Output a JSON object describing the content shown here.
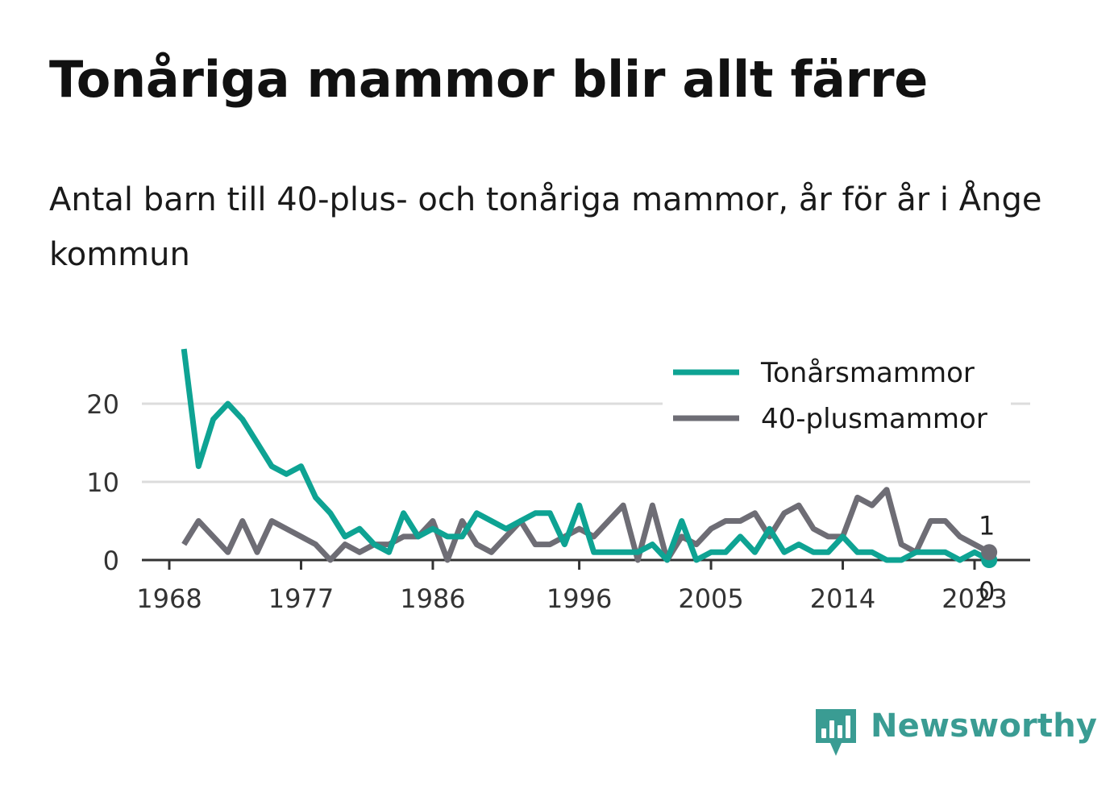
{
  "title": "Tonåriga mammor blir allt färre",
  "subtitle": "Antal barn till 40-plus- och tonåriga mammor, år för år i Ånge kommun",
  "brand": {
    "name": "Newsworthy",
    "icon": "newsworthy-bar-chart-icon",
    "color": "#3a9c93"
  },
  "chart_data": {
    "type": "line",
    "title": "Tonåriga mammor blir allt färre",
    "x_ticks": [
      "1968",
      "1977",
      "1986",
      "1996",
      "2005",
      "2014",
      "2023"
    ],
    "y_ticks": [
      "0",
      "10",
      "20"
    ],
    "ylim": [
      0,
      27
    ],
    "xlim": [
      1968,
      2025
    ],
    "grid": true,
    "legend": "top-right",
    "x": [
      1969,
      1970,
      1971,
      1972,
      1973,
      1974,
      1975,
      1976,
      1977,
      1978,
      1979,
      1980,
      1981,
      1982,
      1983,
      1984,
      1985,
      1986,
      1987,
      1988,
      1989,
      1990,
      1991,
      1992,
      1993,
      1994,
      1995,
      1996,
      1997,
      1998,
      1999,
      2000,
      2001,
      2002,
      2003,
      2004,
      2005,
      2006,
      2007,
      2008,
      2009,
      2010,
      2011,
      2012,
      2013,
      2014,
      2015,
      2016,
      2017,
      2018,
      2019,
      2020,
      2021,
      2022,
      2023,
      2024
    ],
    "series": [
      {
        "name": "Tonårsmammor",
        "color": "#0ea393",
        "values": [
          27,
          12,
          18,
          20,
          18,
          15,
          12,
          11,
          12,
          8,
          6,
          3,
          4,
          2,
          1,
          6,
          3,
          4,
          3,
          3,
          6,
          5,
          4,
          5,
          6,
          6,
          2,
          7,
          1,
          1,
          1,
          1,
          2,
          0,
          5,
          0,
          1,
          1,
          3,
          1,
          4,
          1,
          2,
          1,
          1,
          3,
          1,
          1,
          0,
          0,
          1,
          1,
          1,
          0,
          1,
          0
        ],
        "end_label": "0"
      },
      {
        "name": "40-plusmammor",
        "color": "#6e6d75",
        "values": [
          2,
          5,
          3,
          1,
          5,
          1,
          5,
          4,
          3,
          2,
          0,
          2,
          1,
          2,
          2,
          3,
          3,
          5,
          0,
          5,
          2,
          1,
          3,
          5,
          2,
          2,
          3,
          4,
          3,
          5,
          7,
          0,
          7,
          0,
          3,
          2,
          4,
          5,
          5,
          6,
          3,
          6,
          7,
          4,
          3,
          3,
          8,
          7,
          9,
          2,
          1,
          5,
          5,
          3,
          2,
          1
        ],
        "end_label": "1"
      }
    ]
  }
}
